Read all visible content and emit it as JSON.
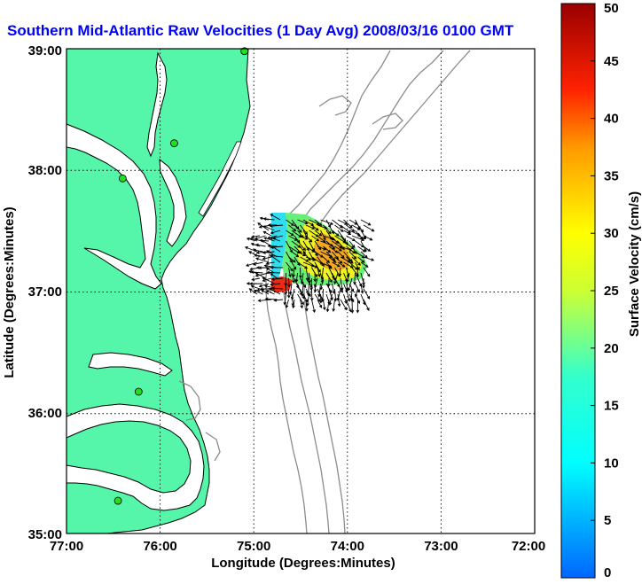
{
  "title": "Southern Mid-Atlantic Raw Velocities (1 Day Avg) 2008/03/16 0100 GMT",
  "map": {
    "lon_range": [
      -77,
      -72
    ],
    "lat_range": [
      35,
      39
    ],
    "x_ticks": [
      "77:00",
      "76:00",
      "75:00",
      "74:00",
      "73:00",
      "72:00"
    ],
    "y_ticks": [
      "35:00",
      "36:00",
      "37:00",
      "38:00",
      "39:00"
    ],
    "xlabel": "Longitude (Degrees:Minutes)",
    "ylabel": "Latitude (Degrees:Minutes)",
    "grid": true,
    "land_color": "#55f5aa",
    "ocean_color": "#ffffff",
    "contour_color": "#8c8c8c",
    "station_color": "#22dd22",
    "stations": [
      {
        "lon": -75.1,
        "lat": 38.98
      },
      {
        "lon": -75.85,
        "lat": 38.22
      },
      {
        "lon": -76.4,
        "lat": 37.93
      },
      {
        "lon": -76.23,
        "lat": 36.17
      },
      {
        "lon": -76.45,
        "lat": 35.27
      }
    ]
  },
  "colorbar": {
    "label": "Surface Velocity (cm/s)",
    "range": [
      0,
      50
    ],
    "ticks": [
      "0",
      "5",
      "10",
      "15",
      "20",
      "25",
      "30",
      "35",
      "40",
      "45",
      "50"
    ]
  }
}
